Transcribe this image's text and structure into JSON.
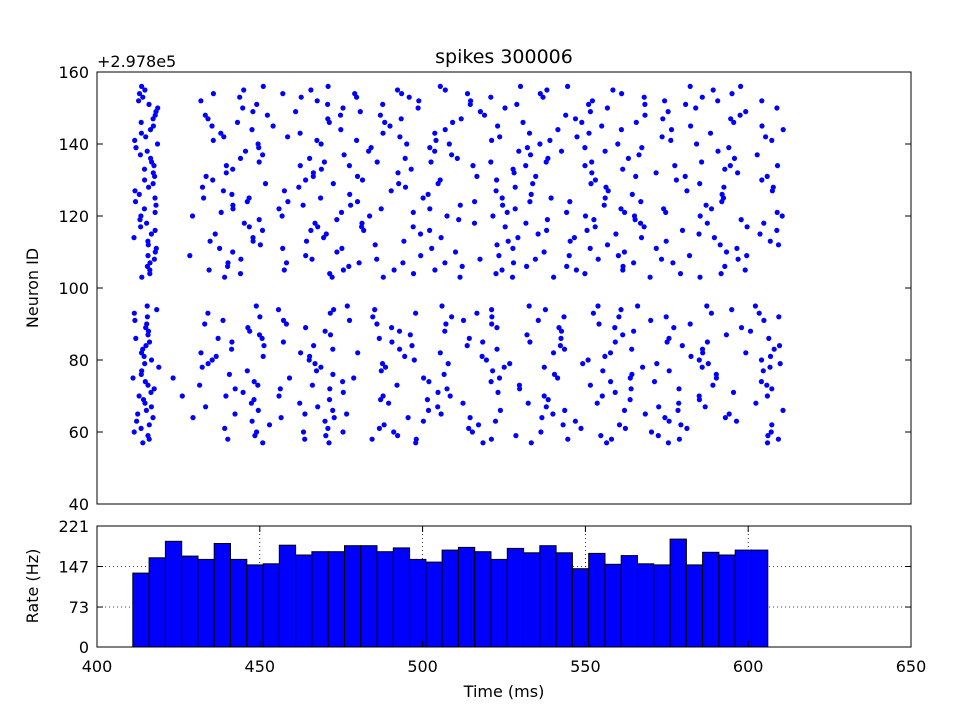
{
  "chart_data": [
    {
      "type": "scatter",
      "title": "spikes 300006",
      "ylabel": "Neuron ID",
      "y_offset_label": "+2.978e5",
      "xlim": [
        400,
        650
      ],
      "ylim": [
        40,
        160
      ],
      "yticks": [
        "40",
        "60",
        "80",
        "100",
        "120",
        "140",
        "160"
      ],
      "grid": false,
      "marker_color": "#0000ff",
      "raster": {
        "t_start": 411,
        "t_end": 611,
        "population_a_ids": [
          57,
          95
        ],
        "population_b_ids": [
          103,
          156
        ]
      }
    },
    {
      "type": "bar",
      "xlabel": "Time (ms)",
      "ylabel": "Rate (Hz)",
      "xlim": [
        400,
        650
      ],
      "ylim": [
        0,
        221
      ],
      "xticks": [
        "400",
        "450",
        "500",
        "550",
        "600",
        "650"
      ],
      "yticks": [
        "0",
        "73",
        "147",
        "221"
      ],
      "grid": true,
      "bar_color": "#0000ff",
      "bin_width_ms": 5,
      "bins_start": [
        411,
        416,
        421,
        426,
        431,
        436,
        441,
        446,
        451,
        456,
        461,
        466,
        471,
        476,
        481,
        486,
        491,
        496,
        501,
        506,
        511,
        516,
        521,
        526,
        531,
        536,
        541,
        546,
        551,
        556,
        561,
        566,
        571,
        576,
        581,
        586,
        591,
        596,
        601,
        606
      ],
      "values": [
        135,
        163,
        193,
        166,
        160,
        189,
        160,
        150,
        152,
        186,
        168,
        174,
        174,
        185,
        185,
        174,
        181,
        160,
        155,
        177,
        182,
        174,
        160,
        180,
        172,
        185,
        172,
        143,
        171,
        151,
        167,
        152,
        150,
        197,
        150,
        173,
        168,
        177,
        177,
        0
      ]
    }
  ]
}
